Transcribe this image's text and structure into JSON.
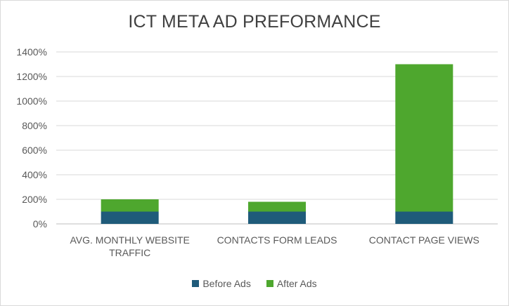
{
  "chart_data": {
    "type": "bar",
    "stacked": true,
    "title": "ICT META AD PREFORMANCE",
    "xlabel": "",
    "ylabel": "",
    "ylim": [
      0,
      1400
    ],
    "y_ticks": [
      "0%",
      "200%",
      "400%",
      "600%",
      "800%",
      "1000%",
      "1200%",
      "1400%"
    ],
    "y_tick_values": [
      0,
      200,
      400,
      600,
      800,
      1000,
      1200,
      1400
    ],
    "categories": [
      "AVG. MONTHLY WEBSITE TRAFFIC",
      "CONTACTS FORM LEADS",
      "CONTACT PAGE VIEWS"
    ],
    "category_lines": [
      [
        "AVG. MONTHLY WEBSITE",
        "TRAFFIC"
      ],
      [
        "CONTACTS FORM LEADS"
      ],
      [
        "CONTACT PAGE VIEWS"
      ]
    ],
    "series": [
      {
        "name": "Before Ads",
        "color": "#1f5b7a",
        "values": [
          100,
          100,
          100
        ]
      },
      {
        "name": "After Ads",
        "color": "#4ea72e",
        "values": [
          100,
          80,
          1200
        ]
      }
    ],
    "grid": true,
    "legend_position": "bottom"
  }
}
